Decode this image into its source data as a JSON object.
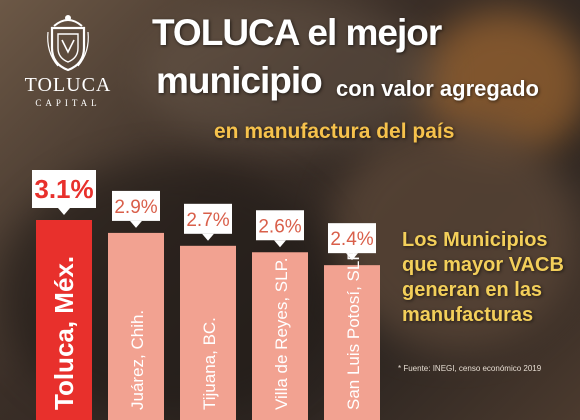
{
  "logo": {
    "name": "TOLUCA",
    "subtitle": "CAPITAL"
  },
  "headline": {
    "line1": "TOLUCA el mejor",
    "line2": "municipio",
    "line2_suffix": "con valor agregado",
    "line3": "en manufactura del país"
  },
  "side_text": "Los Municipios que mayor VACB generan en las manufacturas",
  "footnote": "* Fuente: INEGI, censo económico 2019",
  "colors": {
    "highlight_bar": "#e8302c",
    "other_bar": "#f2a291",
    "accent_text": "#f3cf5a"
  },
  "chart_data": {
    "type": "bar",
    "categories": [
      "Toluca, Méx.",
      "Juárez, Chih.",
      "Tijuana, BC.",
      "Villa de Reyes, SLP.",
      "San Luis Potosí, SLP."
    ],
    "values": [
      3.1,
      2.9,
      2.7,
      2.6,
      2.4
    ],
    "data_labels": [
      "3.1%",
      "2.9%",
      "2.7%",
      "2.6%",
      "2.4%"
    ],
    "highlight_index": 0,
    "unit": "%"
  }
}
